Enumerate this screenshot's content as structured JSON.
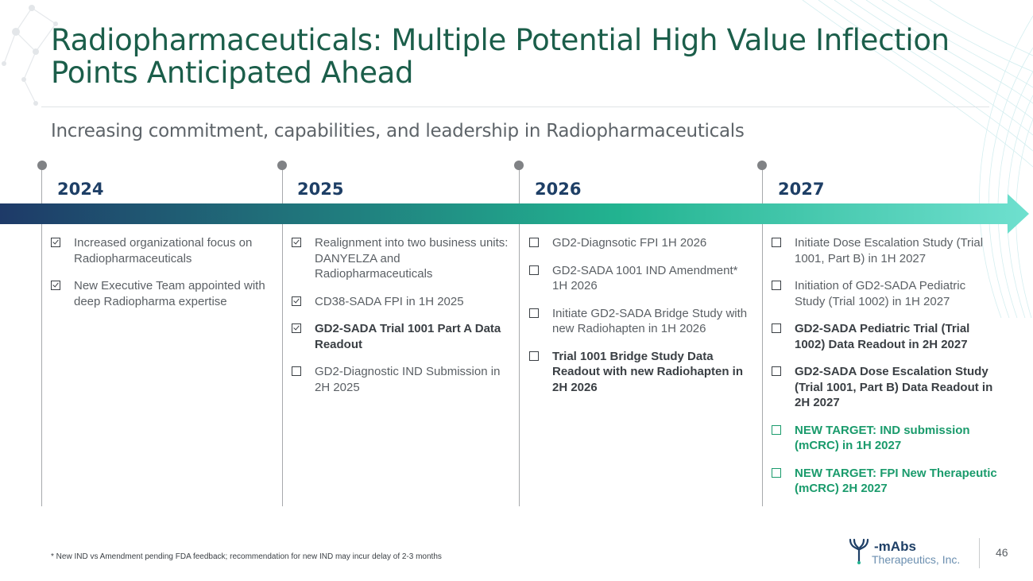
{
  "slide": {
    "title": "Radiopharmaceuticals: Multiple Potential High Value Inflection Points Anticipated Ahead",
    "subtitle": "Increasing commitment, capabilities, and leadership in Radiopharmaceuticals",
    "footnote": "* New IND vs Amendment pending FDA feedback; recommendation for new IND may incur delay of 2-3 months",
    "page_number": "46"
  },
  "timeline": {
    "arrow_gradient": [
      "#1e3a68",
      "#22b390",
      "#6fe0cf"
    ],
    "columns": [
      {
        "year": "2024",
        "items": [
          {
            "text": "Increased organizational focus on Radiopharmaceuticals",
            "checked": true,
            "style": "normal"
          },
          {
            "text": "New Executive Team appointed with deep Radiopharma expertise",
            "checked": true,
            "style": "normal"
          }
        ]
      },
      {
        "year": "2025",
        "items": [
          {
            "text": "Realignment into two business units: DANYELZA and Radiopharmaceuticals",
            "checked": true,
            "style": "normal"
          },
          {
            "text": "CD38-SADA FPI in 1H 2025",
            "checked": true,
            "style": "normal"
          },
          {
            "text": "GD2-SADA Trial 1001 Part A Data Readout",
            "checked": true,
            "style": "bold"
          },
          {
            "text": "GD2-Diagnostic IND Submission in 2H 2025",
            "checked": false,
            "style": "normal"
          }
        ]
      },
      {
        "year": "2026",
        "items": [
          {
            "text": "GD2-Diagnsotic FPI 1H 2026",
            "checked": false,
            "style": "normal"
          },
          {
            "text": "GD2-SADA 1001 IND Amendment* 1H 2026",
            "checked": false,
            "style": "normal"
          },
          {
            "text": "Initiate GD2-SADA Bridge Study with new Radiohapten in 1H 2026",
            "checked": false,
            "style": "normal"
          },
          {
            "text": "Trial 1001 Bridge Study Data Readout with new Radiohapten in 2H 2026",
            "checked": false,
            "style": "bold"
          }
        ]
      },
      {
        "year": "2027",
        "items": [
          {
            "text": "Initiate Dose Escalation Study (Trial 1001, Part B) in 1H 2027",
            "checked": false,
            "style": "normal"
          },
          {
            "text": "Initiation of GD2-SADA Pediatric Study (Trial 1002) in 1H 2027",
            "checked": false,
            "style": "normal"
          },
          {
            "text": "GD2-SADA Pediatric Trial (Trial 1002) Data Readout in 2H 2027",
            "checked": false,
            "style": "bold"
          },
          {
            "text": "GD2-SADA Dose Escalation Study (Trial 1001, Part B) Data Readout in 2H 2027",
            "checked": false,
            "style": "bold"
          },
          {
            "text": "NEW TARGET: IND submission (mCRC) in 1H 2027",
            "checked": false,
            "style": "green"
          },
          {
            "text": "NEW TARGET: FPI New Therapeutic (mCRC) 2H 2027",
            "checked": false,
            "style": "green"
          }
        ]
      }
    ]
  },
  "logo": {
    "name": "mAbs",
    "subtitle": "Therapeutics, Inc.",
    "icon": "ymabs-logo-icon",
    "brand_color": "#1e3f66"
  }
}
